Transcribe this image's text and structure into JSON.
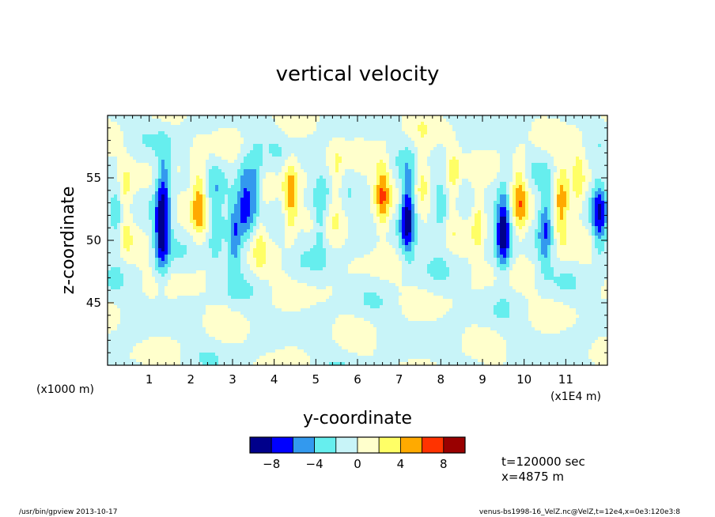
{
  "chart_data": {
    "type": "heatmap",
    "title": "vertical velocity",
    "xlabel": "y-coordinate",
    "ylabel": "z-coordinate",
    "x_unit_left": "(x1000 m)",
    "x_unit_right": "(x1E4 m)",
    "xlim": [
      0,
      12
    ],
    "ylim": [
      40,
      60
    ],
    "x_ticks": [
      "1",
      "2",
      "3",
      "4",
      "5",
      "6",
      "7",
      "8",
      "9",
      "10",
      "11"
    ],
    "y_ticks": [
      "45",
      "50",
      "55"
    ],
    "y_tick_values": [
      45,
      50,
      55
    ],
    "grid": false,
    "colorbar": {
      "labels": [
        "-8",
        "-4",
        "0",
        "4",
        "8"
      ],
      "label_values": [
        -8,
        -4,
        0,
        4,
        8
      ],
      "levels": [
        -10,
        -8,
        -6,
        -4,
        -2,
        0,
        2,
        4,
        6,
        8,
        10
      ],
      "colors": [
        "#00008b",
        "#0000ff",
        "#3399ee",
        "#66eeee",
        "#c8f4f8",
        "#ffffcc",
        "#ffff66",
        "#ffaa00",
        "#ff3300",
        "#990000"
      ]
    },
    "features": [
      {
        "y": 0.25,
        "z_center": 52.0,
        "peak": -3.5
      },
      {
        "y": 0.4,
        "z_center": 52.5,
        "peak": 4.0
      },
      {
        "y": 1.3,
        "z_center": 50.5,
        "peak": -8.0
      },
      {
        "y": 1.35,
        "z_center": 54.5,
        "peak": -5.0
      },
      {
        "y": 2.2,
        "z_center": 53.5,
        "peak": 5.0
      },
      {
        "y": 2.6,
        "z_center": 51.5,
        "peak": -4.0
      },
      {
        "y": 3.05,
        "z_center": 50.0,
        "peak": -5.0
      },
      {
        "y": 3.3,
        "z_center": 53.5,
        "peak": -6.0
      },
      {
        "y": 3.55,
        "z_center": 54.0,
        "peak": -5.0
      },
      {
        "y": 3.65,
        "z_center": 50.5,
        "peak": 3.0
      },
      {
        "y": 4.4,
        "z_center": 53.5,
        "peak": 5.5
      },
      {
        "y": 5.1,
        "z_center": 52.0,
        "peak": -4.0
      },
      {
        "y": 5.5,
        "z_center": 54.5,
        "peak": 3.0
      },
      {
        "y": 6.6,
        "z_center": 53.5,
        "peak": 5.5
      },
      {
        "y": 7.2,
        "z_center": 52.0,
        "peak": -9.0
      },
      {
        "y": 7.55,
        "z_center": 55.0,
        "peak": 3.0
      },
      {
        "y": 8.0,
        "z_center": 52.5,
        "peak": -3.0
      },
      {
        "y": 8.3,
        "z_center": 55.0,
        "peak": 3.0
      },
      {
        "y": 8.9,
        "z_center": 52.0,
        "peak": 4.0
      },
      {
        "y": 9.5,
        "z_center": 51.0,
        "peak": -9.0
      },
      {
        "y": 9.9,
        "z_center": 53.5,
        "peak": 5.0
      },
      {
        "y": 10.5,
        "z_center": 51.0,
        "peak": -5.5
      },
      {
        "y": 10.9,
        "z_center": 53.0,
        "peak": 5.5
      },
      {
        "y": 11.3,
        "z_center": 55.0,
        "peak": 3.0
      },
      {
        "y": 11.8,
        "z_center": 52.0,
        "peak": -6.5
      }
    ]
  },
  "annotations": {
    "time": "t=120000 sec",
    "xpos": "x=4875 m"
  },
  "footer": {
    "left": "/usr/bin/gpview   2013-10-17",
    "right": "venus-bs1998-16_VelZ.nc@VelZ,t=12e4,x=0e3:120e3:8"
  }
}
